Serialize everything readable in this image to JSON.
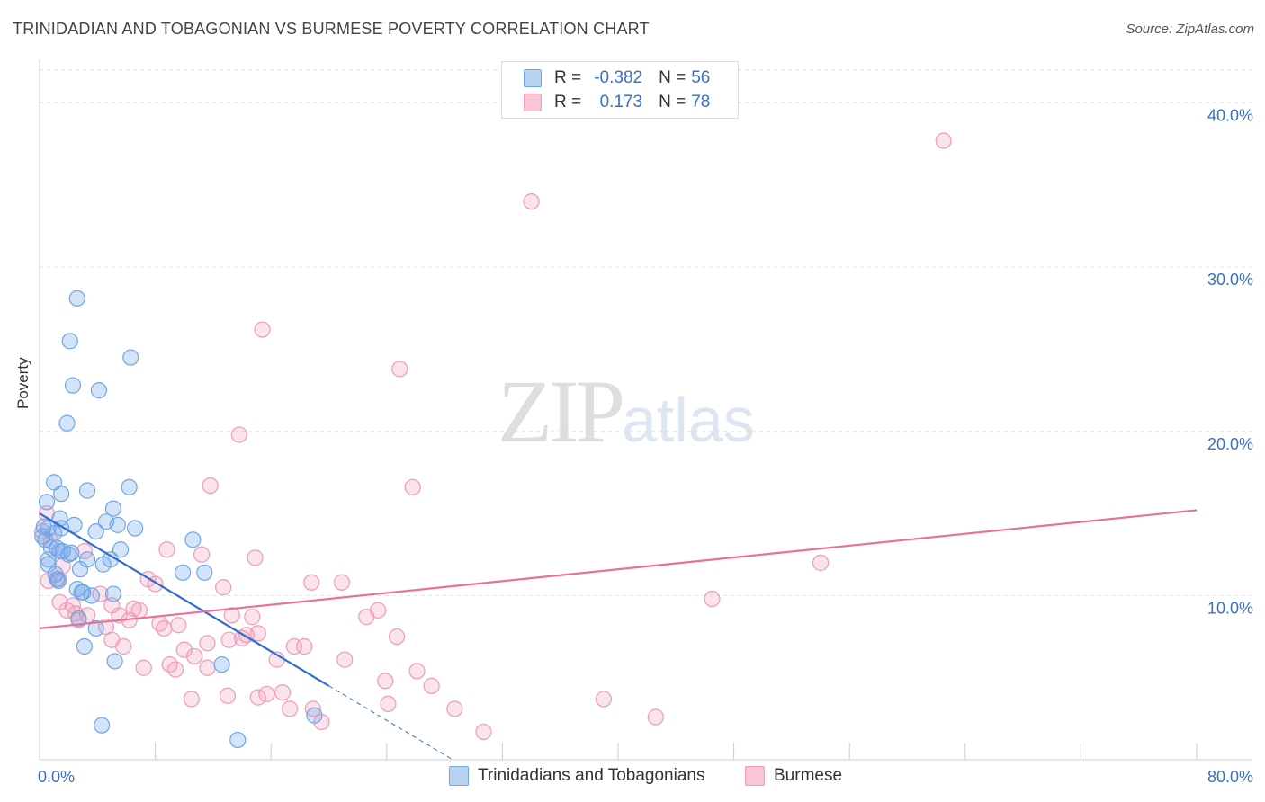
{
  "title": "TRINIDADIAN AND TOBAGONIAN VS BURMESE POVERTY CORRELATION CHART",
  "source": "Source: ZipAtlas.com",
  "watermark": {
    "zip": "ZIP",
    "atlas": "atlas"
  },
  "colors": {
    "blue": "#6fa6e8",
    "pink": "#f09ab8",
    "blue_line": "#2e6fd1",
    "pink_line": "#e8709a",
    "axis_label": "#3a6fc8"
  },
  "legend": {
    "rows": [
      {
        "r_label": "R =",
        "r_value": "-0.382",
        "n_label": "N =",
        "n_value": "56"
      },
      {
        "r_label": "R =",
        "r_value": "0.173",
        "n_label": "N =",
        "n_value": "78"
      }
    ]
  },
  "bottom_legend": {
    "series1": "Trinidadians and Tobagonians",
    "series2": "Burmese"
  },
  "chart_data": {
    "type": "scatter",
    "title": "TRINIDADIAN AND TOBAGONIAN VS BURMESE POVERTY CORRELATION CHART",
    "xlabel": "",
    "ylabel": "Poverty",
    "xlim": [
      0,
      80
    ],
    "ylim": [
      0,
      42
    ],
    "x_tick_labels": [
      "0.0%",
      "80.0%"
    ],
    "y_ticks": [
      10,
      20,
      30,
      40
    ],
    "y_tick_labels": [
      "10.0%",
      "20.0%",
      "30.0%",
      "40.0%"
    ],
    "series": [
      {
        "name": "Trinidadians and Tobagonians",
        "color": "#6fa6e8",
        "trend": {
          "x0": 0,
          "y0": 15.0,
          "x1": 20,
          "y1": 4.5,
          "dash_to_x": 28.5
        },
        "points": [
          [
            2.6,
            28.1
          ],
          [
            2.1,
            25.5
          ],
          [
            6.3,
            24.5
          ],
          [
            2.3,
            22.8
          ],
          [
            4.1,
            22.5
          ],
          [
            1.9,
            20.5
          ],
          [
            1.0,
            16.9
          ],
          [
            6.2,
            16.6
          ],
          [
            3.3,
            16.4
          ],
          [
            1.5,
            16.2
          ],
          [
            0.5,
            15.7
          ],
          [
            5.1,
            15.3
          ],
          [
            1.4,
            14.7
          ],
          [
            4.6,
            14.5
          ],
          [
            2.4,
            14.3
          ],
          [
            5.4,
            14.3
          ],
          [
            0.6,
            14.1
          ],
          [
            1.5,
            14.1
          ],
          [
            6.6,
            14.1
          ],
          [
            3.9,
            13.9
          ],
          [
            1.0,
            13.8
          ],
          [
            0.2,
            13.6
          ],
          [
            0.4,
            13.4
          ],
          [
            10.6,
            13.4
          ],
          [
            1.2,
            12.9
          ],
          [
            5.6,
            12.8
          ],
          [
            1.4,
            12.7
          ],
          [
            1.6,
            12.7
          ],
          [
            2.2,
            12.6
          ],
          [
            0.6,
            12.2
          ],
          [
            3.3,
            12.2
          ],
          [
            4.9,
            12.2
          ],
          [
            4.4,
            11.9
          ],
          [
            0.6,
            11.9
          ],
          [
            2.8,
            11.6
          ],
          [
            9.9,
            11.4
          ],
          [
            11.4,
            11.4
          ],
          [
            1.1,
            11.3
          ],
          [
            1.2,
            11.0
          ],
          [
            2.6,
            10.4
          ],
          [
            2.9,
            10.2
          ],
          [
            3.0,
            10.2
          ],
          [
            5.1,
            10.1
          ],
          [
            3.6,
            10.0
          ],
          [
            2.7,
            8.6
          ],
          [
            3.9,
            8.0
          ],
          [
            3.1,
            6.9
          ],
          [
            5.2,
            6.0
          ],
          [
            12.6,
            5.8
          ],
          [
            19.0,
            2.7
          ],
          [
            4.3,
            2.1
          ],
          [
            13.7,
            1.2
          ],
          [
            0.3,
            14.2
          ],
          [
            0.8,
            12.9
          ],
          [
            2.0,
            12.5
          ],
          [
            1.3,
            10.9
          ]
        ]
      },
      {
        "name": "Burmese",
        "color": "#f09ab8",
        "trend": {
          "x0": 0,
          "y0": 8.0,
          "x1": 80,
          "y1": 15.2
        },
        "points": [
          [
            62.5,
            37.7
          ],
          [
            34.0,
            34.0
          ],
          [
            15.4,
            26.2
          ],
          [
            24.9,
            23.8
          ],
          [
            13.8,
            19.8
          ],
          [
            11.8,
            16.7
          ],
          [
            25.8,
            16.6
          ],
          [
            0.5,
            15.0
          ],
          [
            0.2,
            13.9
          ],
          [
            0.8,
            13.3
          ],
          [
            3.1,
            12.7
          ],
          [
            8.8,
            12.8
          ],
          [
            11.2,
            12.5
          ],
          [
            14.9,
            12.3
          ],
          [
            54.0,
            12.0
          ],
          [
            1.6,
            11.8
          ],
          [
            1.3,
            11.0
          ],
          [
            7.5,
            11.0
          ],
          [
            8.0,
            10.7
          ],
          [
            18.8,
            10.8
          ],
          [
            20.9,
            10.8
          ],
          [
            12.7,
            10.5
          ],
          [
            0.6,
            10.9
          ],
          [
            4.2,
            10.1
          ],
          [
            46.5,
            9.8
          ],
          [
            1.4,
            9.6
          ],
          [
            2.3,
            9.4
          ],
          [
            5.0,
            9.4
          ],
          [
            6.5,
            9.2
          ],
          [
            6.9,
            9.1
          ],
          [
            1.9,
            9.1
          ],
          [
            2.5,
            8.9
          ],
          [
            3.3,
            8.8
          ],
          [
            5.5,
            8.8
          ],
          [
            23.4,
            9.1
          ],
          [
            13.3,
            8.8
          ],
          [
            22.6,
            8.7
          ],
          [
            6.2,
            8.5
          ],
          [
            2.7,
            8.5
          ],
          [
            8.3,
            8.3
          ],
          [
            9.6,
            8.2
          ],
          [
            8.6,
            8.0
          ],
          [
            4.6,
            8.1
          ],
          [
            15.1,
            7.7
          ],
          [
            14.3,
            7.6
          ],
          [
            13.1,
            7.3
          ],
          [
            14.0,
            7.4
          ],
          [
            11.6,
            7.1
          ],
          [
            5.0,
            7.3
          ],
          [
            5.8,
            6.9
          ],
          [
            17.6,
            6.9
          ],
          [
            18.3,
            6.9
          ],
          [
            24.7,
            7.5
          ],
          [
            10.0,
            6.7
          ],
          [
            10.7,
            6.3
          ],
          [
            16.4,
            6.1
          ],
          [
            21.1,
            6.1
          ],
          [
            9.0,
            5.8
          ],
          [
            11.6,
            5.6
          ],
          [
            7.2,
            5.6
          ],
          [
            26.1,
            5.4
          ],
          [
            23.9,
            4.8
          ],
          [
            27.1,
            4.5
          ],
          [
            13.0,
            3.9
          ],
          [
            15.7,
            4.0
          ],
          [
            15.1,
            3.8
          ],
          [
            16.8,
            4.1
          ],
          [
            10.5,
            3.7
          ],
          [
            39.0,
            3.7
          ],
          [
            24.1,
            3.4
          ],
          [
            17.3,
            3.1
          ],
          [
            18.9,
            3.1
          ],
          [
            28.7,
            3.1
          ],
          [
            42.6,
            2.6
          ],
          [
            19.5,
            2.3
          ],
          [
            30.7,
            1.7
          ],
          [
            9.4,
            5.5
          ],
          [
            14.7,
            8.7
          ]
        ]
      }
    ]
  }
}
